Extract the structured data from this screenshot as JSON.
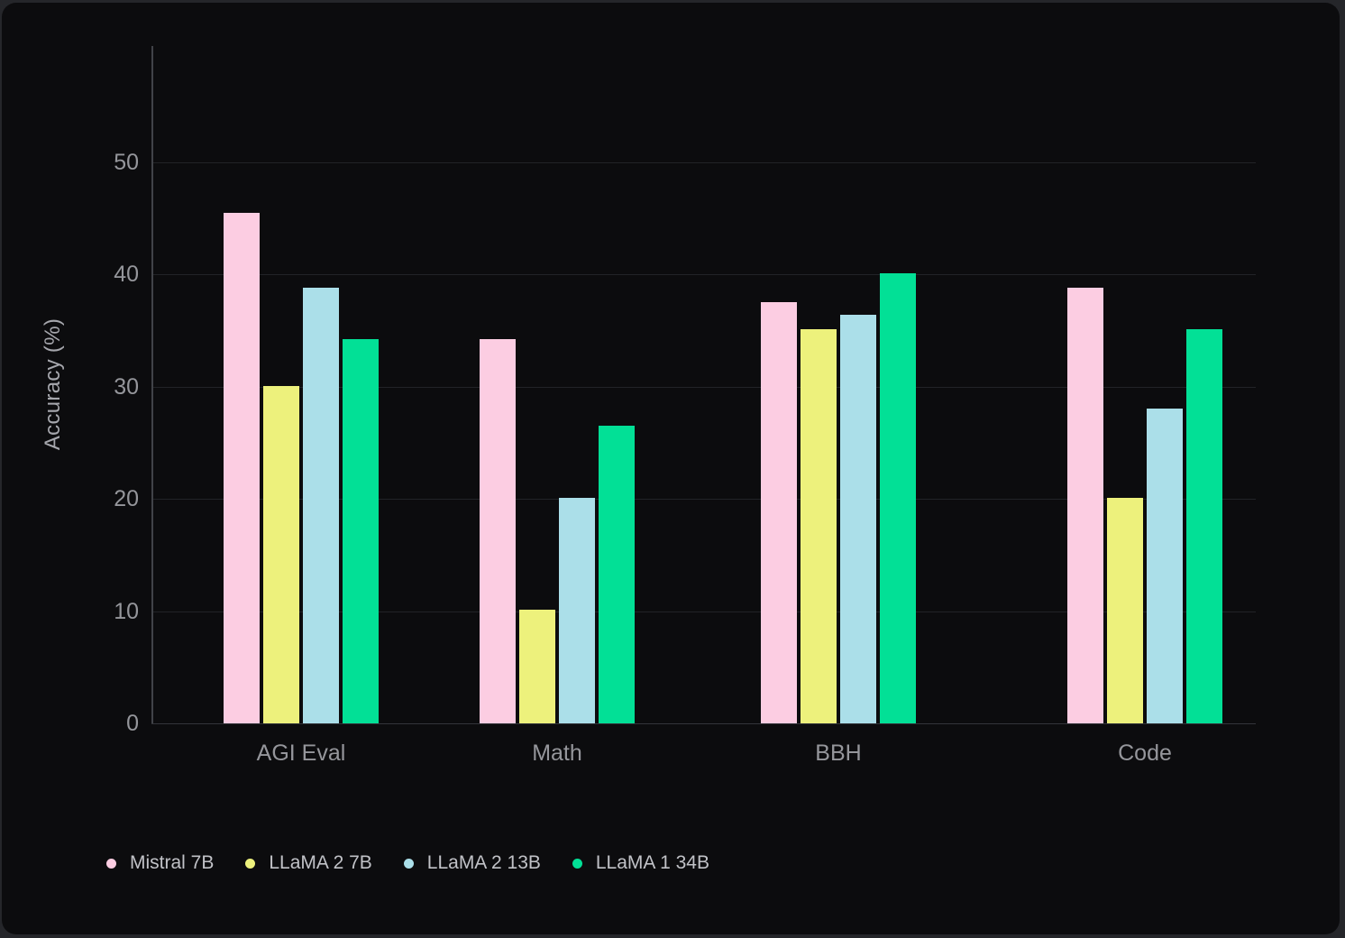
{
  "chart_data": {
    "type": "bar",
    "categories": [
      "AGI Eval",
      "Math",
      "BBH",
      "Code"
    ],
    "series": [
      {
        "name": "Mistral 7B",
        "color": "#FCCDE2",
        "values": [
          45.5,
          34.2,
          37.5,
          38.8
        ]
      },
      {
        "name": "LLaMA 2 7B",
        "color": "#EDF17C",
        "values": [
          30.0,
          10.1,
          35.1,
          20.1
        ]
      },
      {
        "name": "LLaMA 2 13B",
        "color": "#ABDFE9",
        "values": [
          38.8,
          20.1,
          36.4,
          28.0
        ]
      },
      {
        "name": "LLaMA 1 34B",
        "color": "#02E096",
        "values": [
          34.2,
          26.5,
          40.1,
          35.1
        ]
      }
    ],
    "ylabel": "Accuracy (%)",
    "yticks": [
      0,
      10,
      20,
      30,
      40,
      50
    ],
    "ylim": [
      0,
      60
    ],
    "grid": true,
    "legend_position": "bottom-left",
    "legend": [
      "Mistral 7B",
      "LLaMA 2 7B",
      "LLaMA 2 13B",
      "LLaMA 1 34B"
    ]
  },
  "colors": {
    "card_background": "#0C0C0E",
    "page_background": "#25262A",
    "gridline": "#222327",
    "axis_line": "#414348",
    "tick_label": "#95969B",
    "axis_title": "#A6A7AD",
    "legend_text": "#C1C2C7"
  }
}
